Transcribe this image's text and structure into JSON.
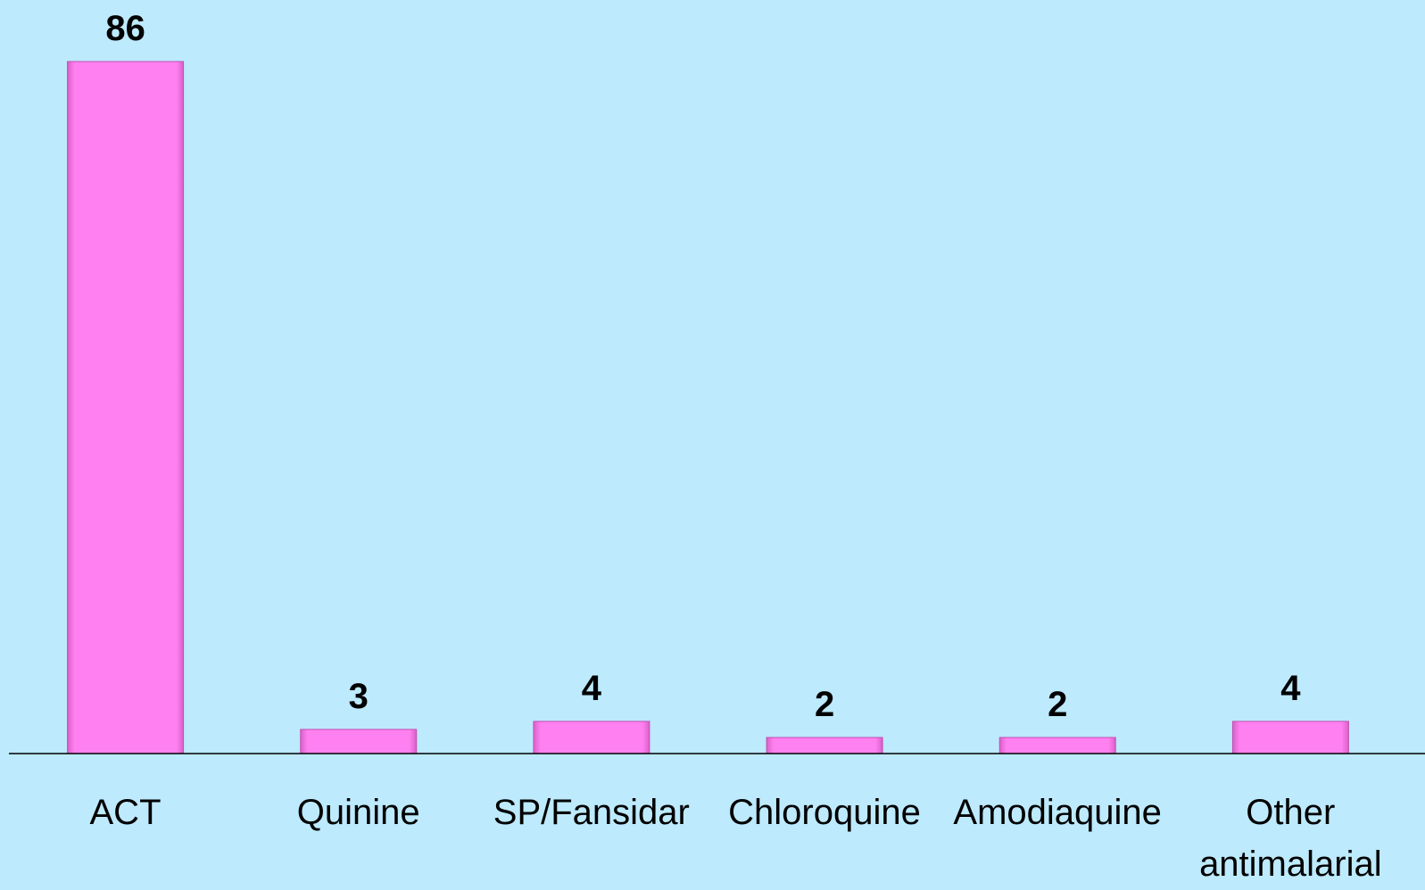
{
  "chart_data": {
    "type": "bar",
    "categories": [
      "ACT",
      "Quinine",
      "SP/Fansidar",
      "Chloroquine",
      "Amodiaquine",
      "Other antimalarial"
    ],
    "values": [
      86,
      3,
      4,
      2,
      2,
      4
    ],
    "color": "#ff80f0"
  }
}
